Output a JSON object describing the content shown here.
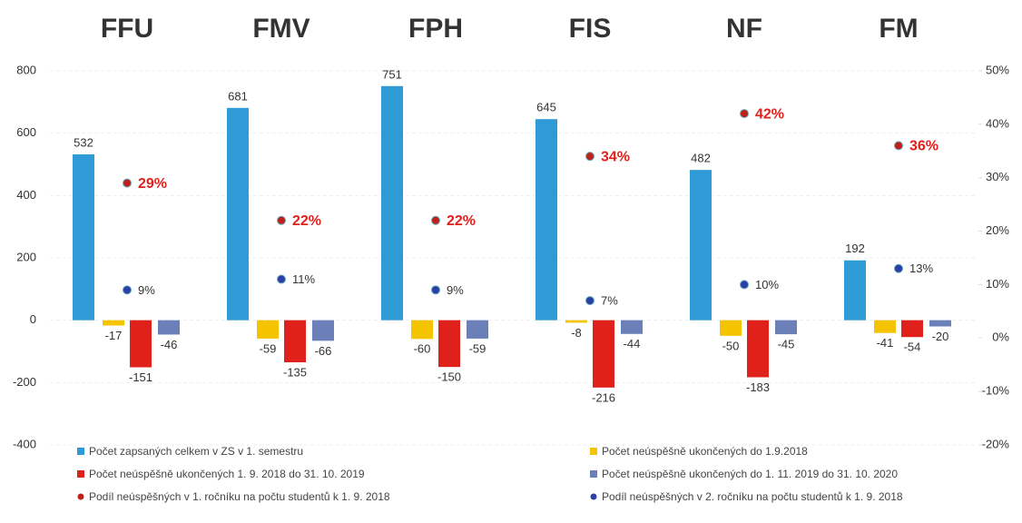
{
  "chart_data": {
    "type": "bar",
    "categories": [
      "FFU",
      "FMV",
      "FPH",
      "FIS",
      "NF",
      "FM"
    ],
    "ylim": [
      -400,
      800
    ],
    "yticks": [
      -400,
      -200,
      0,
      200,
      400,
      600,
      800
    ],
    "y2lim": [
      -20,
      50
    ],
    "y2ticks": [
      {
        "value": -20,
        "label": "-20%"
      },
      {
        "value": -10,
        "label": "-10%"
      },
      {
        "value": 0,
        "label": "0%"
      },
      {
        "value": 10,
        "label": "10%"
      },
      {
        "value": 20,
        "label": "20%"
      },
      {
        "value": 30,
        "label": "30%"
      },
      {
        "value": 40,
        "label": "40%"
      },
      {
        "value": 50,
        "label": "50%"
      }
    ],
    "grid": true,
    "legend": "bottom",
    "series": [
      {
        "name": "Počet zapsaných celkem v ZS v 1. semestru",
        "type": "bar",
        "color": "#2e9bd6",
        "values": [
          532,
          681,
          751,
          645,
          482,
          192
        ]
      },
      {
        "name": "Počet neúspěšně ukončených do 1.9.2018",
        "type": "bar",
        "color": "#f5c400",
        "values": [
          -17,
          -59,
          -60,
          -8,
          -50,
          -41
        ]
      },
      {
        "name": "Počet neúspěšně ukončených 1. 9. 2018 do 31. 10. 2019",
        "type": "bar",
        "color": "#e0201a",
        "values": [
          -151,
          -135,
          -150,
          -216,
          -183,
          -54
        ]
      },
      {
        "name": "Počet neúspěšně ukončených do 1. 11. 2019 do 31. 10. 2020",
        "type": "bar",
        "color": "#6b7fb8",
        "values": [
          -46,
          -66,
          -59,
          -44,
          -45,
          -20
        ]
      },
      {
        "name": "Podíl neúspěšných v 1. ročníku na počtu studentů k 1. 9. 2018",
        "type": "dot",
        "axis": "y2",
        "color": "#c0201a",
        "values": [
          29,
          22,
          22,
          34,
          42,
          36
        ],
        "value_labels": [
          "29%",
          "22%",
          "22%",
          "34%",
          "42%",
          "36%"
        ]
      },
      {
        "name": "Podíl neúspěšných v 2. ročníku na počtu studentů k 1. 9. 2018",
        "type": "dot",
        "axis": "y2",
        "color": "#2a3fa8",
        "values": [
          9,
          11,
          9,
          7,
          10,
          13
        ],
        "value_labels": [
          "9%",
          "11%",
          "9%",
          "7%",
          "10%",
          "13%"
        ]
      }
    ]
  }
}
